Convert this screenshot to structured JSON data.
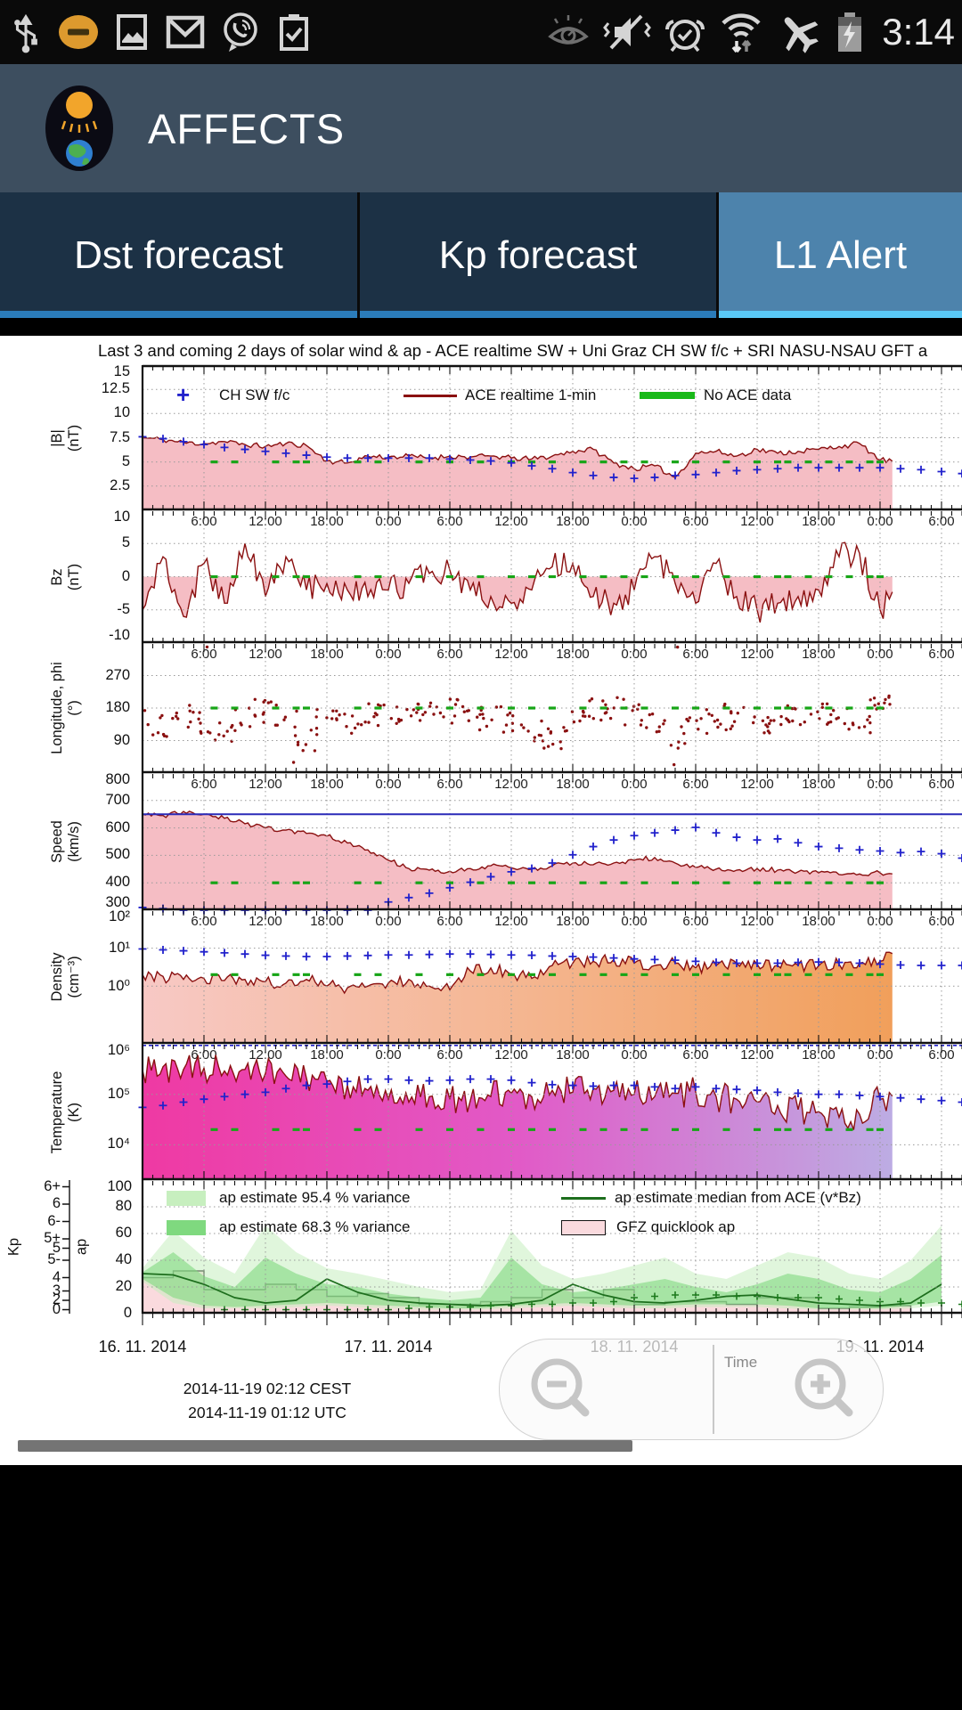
{
  "status_bar": {
    "time": "3:14",
    "icons_left": [
      "usb-icon",
      "do-not-disturb-icon",
      "gallery-icon",
      "gmail-icon",
      "viber-icon",
      "clipboard-icon"
    ],
    "icons_right": [
      "eye-icon",
      "mute-vibrate-icon",
      "alarm-icon",
      "wifi-icon",
      "airplane-mode-icon",
      "battery-charging-icon"
    ]
  },
  "header": {
    "app_title": "AFFECTS"
  },
  "tabs": [
    {
      "label": "Dst forecast",
      "active": false
    },
    {
      "label": "Kp forecast",
      "active": false
    },
    {
      "label": "L1 Alert",
      "active": true
    }
  ],
  "chart_data": {
    "type": "multi-panel-timeseries",
    "title": "Last 3 and coming 2 days of solar wind & ap  -  ACE realtime SW + Uni Graz CH SW f/c + SRI NASU-NSAU GFT a",
    "x_axis": {
      "start_hours": 0,
      "end_hours": 80,
      "data_end_hours": 73.2,
      "tick_interval_hours": 6,
      "minor_tick_hours": 1,
      "time_label_cycle": [
        "6:00",
        "12:00",
        "18:00",
        "0:00"
      ],
      "dates": [
        {
          "label": "16. 11. 2014",
          "hour": 0
        },
        {
          "label": "17. 11. 2014",
          "hour": 24
        },
        {
          "label": "18. 11. 2014",
          "hour": 48
        },
        {
          "label": "19. 11. 2014",
          "hour": 72
        }
      ]
    },
    "legend_top": [
      {
        "label": "CH SW f/c",
        "marker": "plus",
        "color": "#2222cc"
      },
      {
        "label": "ACE realtime 1-min",
        "marker": "line",
        "color": "#8a1010"
      },
      {
        "label": "No ACE data",
        "marker": "thick-line",
        "color": "#17a517"
      }
    ],
    "legend_ap": [
      {
        "label": "ap estimate 95.4 % variance",
        "marker": "patch",
        "color": "#c7efbf"
      },
      {
        "label": "ap estimate 68.3 % variance",
        "marker": "patch",
        "color": "#7fd97f"
      },
      {
        "label": "ap estimate median from ACE (v*Bz)",
        "marker": "line",
        "color": "#1d6e1d"
      },
      {
        "label": "GFZ quicklook ap",
        "marker": "box",
        "color": "#fadade"
      }
    ],
    "no_ace_data_hours": [
      7,
      9,
      13,
      15,
      16,
      21,
      23,
      27,
      30,
      33,
      36,
      38,
      40,
      43,
      45,
      47,
      49,
      52,
      54,
      57,
      60,
      62,
      63,
      65,
      67,
      69,
      71,
      72
    ],
    "panels": [
      {
        "id": "bmag",
        "label": "|B|",
        "unit": "(nT)",
        "scale": "linear",
        "ylim": [
          0,
          15
        ],
        "yticks": [
          {
            "v": 15,
            "label": "15"
          },
          {
            "v": 12.5,
            "label": "12.5"
          },
          {
            "v": 10,
            "label": "10"
          },
          {
            "v": 7.5,
            "label": "7.5"
          },
          {
            "v": 5,
            "label": "5"
          },
          {
            "v": 2.5,
            "label": "2.5"
          }
        ],
        "step_hours": 2,
        "no_ace_marker_value": 5,
        "ace": [
          7.5,
          7.3,
          7.0,
          6.9,
          7.1,
          6.8,
          6.6,
          6.9,
          6.7,
          5.1,
          4.9,
          5.6,
          5.5,
          5.6,
          5.4,
          5.6,
          5.5,
          5.6,
          5.4,
          5.3,
          5.6,
          6.1,
          6.3,
          4.9,
          4.3,
          4.6,
          3.4,
          5.9,
          6.1,
          5.6,
          6.3,
          5.9,
          6.1,
          6.3,
          6.6,
          6.9,
          5.2,
          5.0
        ],
        "forecast": [
          7.6,
          7.4,
          7.1,
          6.8,
          6.5,
          6.3,
          6.1,
          5.9,
          5.7,
          5.5,
          5.4,
          5.4,
          5.4,
          5.4,
          5.4,
          5.3,
          5.2,
          5.1,
          4.9,
          4.6,
          4.3,
          3.9,
          3.6,
          3.4,
          3.3,
          3.4,
          3.6,
          3.7,
          3.9,
          4.1,
          4.2,
          4.3,
          4.4,
          4.4,
          4.4,
          4.4,
          4.4,
          4.3,
          4.2,
          4.0,
          3.8
        ]
      },
      {
        "id": "bz",
        "label": "Bz",
        "unit": "(nT)",
        "scale": "linear",
        "ylim": [
          -10,
          10
        ],
        "yticks": [
          {
            "v": 10,
            "label": "10"
          },
          {
            "v": 5,
            "label": "5"
          },
          {
            "v": 0,
            "label": "0"
          },
          {
            "v": -5,
            "label": "-5"
          },
          {
            "v": -10,
            "label": "-10"
          }
        ],
        "step_hours": 2,
        "no_ace_marker_value": 0,
        "ace": [
          -5,
          3,
          -6,
          2,
          -4,
          5,
          -3,
          3,
          -2,
          -1,
          -2,
          -3,
          -2,
          -1,
          0.5,
          1,
          -2,
          -3,
          -4,
          -2,
          1.5,
          2,
          -3,
          -4,
          -2,
          3,
          -1,
          -4,
          2,
          -3,
          -5,
          -4,
          -3,
          -2,
          3,
          3.5,
          -5,
          -0.5
        ]
      },
      {
        "id": "phi",
        "label": "Longitude, phi",
        "unit": "(°)",
        "scale": "linear",
        "ylim": [
          0,
          360
        ],
        "yticks": [
          {
            "v": 270,
            "label": "270"
          },
          {
            "v": 180,
            "label": "180"
          },
          {
            "v": 90,
            "label": "90"
          }
        ],
        "step_hours": 2,
        "no_ace_marker_value": 180,
        "ace": [
          150,
          130,
          160,
          140,
          120,
          150,
          170,
          160,
          90,
          150,
          140,
          160,
          170,
          175,
          165,
          172,
          160,
          150,
          135,
          118,
          95,
          150,
          172,
          180,
          160,
          130,
          100,
          142,
          162,
          150,
          130,
          142,
          152,
          162,
          145,
          133,
          185,
          235
        ]
      },
      {
        "id": "speed",
        "label": "Speed",
        "unit": "(km/s)",
        "scale": "linear",
        "ylim": [
          300,
          800
        ],
        "yticks": [
          {
            "v": 800,
            "label": "800"
          },
          {
            "v": 700,
            "label": "700"
          },
          {
            "v": 600,
            "label": "600"
          },
          {
            "v": 500,
            "label": "500"
          },
          {
            "v": 400,
            "label": "400"
          },
          {
            "v": 300,
            "label": "300"
          }
        ],
        "step_hours": 2,
        "no_ace_marker_value": 400,
        "refline": 650,
        "ace": [
          650,
          645,
          660,
          650,
          635,
          615,
          600,
          592,
          580,
          570,
          545,
          520,
          482,
          452,
          446,
          442,
          452,
          462,
          455,
          450,
          462,
          472,
          466,
          472,
          482,
          492,
          472,
          456,
          450,
          446,
          452,
          446,
          440,
          436,
          430,
          432,
          436,
          430
        ],
        "forecast": [
          310,
          306,
          300,
          296,
          290,
          286,
          282,
          278,
          276,
          272,
          270,
          268,
          330,
          346,
          362,
          382,
          402,
          422,
          440,
          452,
          472,
          502,
          532,
          556,
          572,
          582,
          592,
          602,
          582,
          566,
          556,
          560,
          546,
          532,
          526,
          520,
          516,
          510,
          514,
          506,
          490
        ]
      },
      {
        "id": "density",
        "label": "Density",
        "unit": "(cm⁻³)",
        "scale": "log",
        "ylim": [
          0.03,
          100
        ],
        "yticks": [
          {
            "v": 100,
            "label": "10²"
          },
          {
            "v": 10,
            "label": "10¹"
          },
          {
            "v": 1,
            "label": "10⁰"
          }
        ],
        "step_hours": 2,
        "no_ace_marker_value": 2,
        "ace": [
          2,
          1.8,
          1.5,
          1.6,
          1.4,
          1.5,
          1.3,
          1.2,
          1.5,
          1.0,
          0.9,
          1.0,
          1.2,
          1.5,
          1.0,
          0.8,
          2.5,
          3.0,
          2.0,
          1.6,
          3.5,
          4.0,
          4.5,
          5.0,
          4.0,
          3.5,
          4.0,
          3.0,
          3.5,
          4.0,
          3.8,
          3.5,
          3.6,
          3.4,
          3.8,
          4.0,
          4.5,
          9.0
        ],
        "forecast": [
          9.5,
          9.0,
          8.5,
          8.0,
          7.5,
          7.0,
          6.5,
          6.2,
          6.0,
          6.0,
          6.2,
          6.4,
          6.6,
          6.6,
          6.8,
          7.0,
          7.0,
          6.8,
          6.6,
          6.5,
          6.2,
          6.0,
          5.8,
          5.5,
          5.2,
          5.0,
          4.8,
          4.5,
          4.2,
          4.0,
          4.0,
          4.0,
          4.2,
          4.3,
          4.2,
          4.0,
          3.8,
          3.6,
          3.5,
          3.5,
          3.5
        ]
      },
      {
        "id": "temperature",
        "label": "Temperature",
        "unit": "(K)",
        "scale": "log",
        "ylim": [
          2000,
          1000000
        ],
        "yticks": [
          {
            "v": 1000000,
            "label": "10⁶"
          },
          {
            "v": 100000,
            "label": "10⁵"
          },
          {
            "v": 10000,
            "label": "10⁴"
          }
        ],
        "step_hours": 2,
        "no_ace_marker_value": 20000,
        "refline_dashed": 930000,
        "ace": [
          300000,
          350000,
          310000,
          330000,
          290000,
          310000,
          260000,
          230000,
          210000,
          180000,
          150000,
          120000,
          80000,
          70000,
          90000,
          80000,
          75000,
          90000,
          105000,
          90000,
          120000,
          110000,
          130000,
          120000,
          100000,
          90000,
          105000,
          110000,
          90000,
          80000,
          70000,
          60000,
          50000,
          45000,
          35000,
          40000,
          80000,
          100000
        ],
        "forecast": [
          55000,
          60000,
          70000,
          80000,
          90000,
          100000,
          110000,
          130000,
          150000,
          160000,
          180000,
          200000,
          200000,
          190000,
          185000,
          190000,
          200000,
          200000,
          190000,
          170000,
          155000,
          150000,
          145000,
          150000,
          150000,
          140000,
          130000,
          140000,
          130000,
          125000,
          120000,
          110000,
          105000,
          100000,
          100000,
          95000,
          90000,
          85000,
          80000,
          75000,
          70000
        ]
      },
      {
        "id": "kp_ap",
        "label_left": "Kp",
        "label_right": "ap",
        "scale": "linear",
        "ylim": [
          0,
          100
        ],
        "ap_ticks": [
          {
            "v": 100,
            "label": "100"
          },
          {
            "v": 80,
            "label": "80"
          },
          {
            "v": 60,
            "label": "60"
          },
          {
            "v": 40,
            "label": "40"
          },
          {
            "v": 20,
            "label": "20"
          },
          {
            "v": 0,
            "label": "0"
          }
        ],
        "kp_ticks": [
          "6+",
          "6",
          "6-",
          "5+",
          "5",
          "5-",
          "4",
          "3",
          "2",
          "0"
        ],
        "bars_step_hours": 3,
        "gfz_ap": [
          27,
          32,
          18,
          18,
          22,
          18,
          13,
          15,
          12,
          7,
          7,
          9,
          12,
          18,
          12,
          18,
          7,
          9,
          9,
          7,
          12,
          12,
          4,
          5,
          6
        ],
        "median_step_hours": 3,
        "median": [
          30,
          29,
          22,
          12,
          8,
          10,
          26,
          16,
          10,
          8,
          7,
          6,
          7,
          10,
          22,
          14,
          9,
          8,
          10,
          13,
          14,
          11,
          8,
          7,
          6,
          8,
          22
        ],
        "band95_hi": [
          34,
          62,
          42,
          30,
          66,
          46,
          34,
          30,
          25,
          20,
          16,
          18,
          62,
          36,
          26,
          30,
          36,
          42,
          30,
          26,
          36,
          46,
          42,
          30,
          26,
          40,
          66
        ],
        "band95_lo": [
          24,
          8,
          4,
          4,
          4,
          5,
          6,
          5,
          4,
          3,
          3,
          3,
          4,
          5,
          6,
          5,
          4,
          4,
          5,
          5,
          5,
          4,
          3,
          3,
          3,
          4,
          6
        ],
        "band68_hi": [
          31,
          46,
          28,
          20,
          42,
          30,
          22,
          20,
          15,
          12,
          10,
          12,
          42,
          22,
          16,
          18,
          22,
          26,
          20,
          16,
          22,
          30,
          26,
          18,
          16,
          26,
          44
        ],
        "band68_lo": [
          26,
          12,
          6,
          5,
          6,
          7,
          8,
          7,
          6,
          5,
          4,
          4,
          6,
          7,
          8,
          7,
          6,
          6,
          7,
          7,
          7,
          6,
          4,
          4,
          4,
          6,
          9
        ],
        "forecast_plus_start_hour": 8,
        "forecast_plus_step_hours": 2,
        "forecast_plus": [
          3,
          3,
          3,
          3,
          3,
          3,
          3,
          3,
          3,
          4,
          5,
          5,
          5,
          6,
          6,
          7,
          7,
          8,
          8,
          9,
          12,
          13,
          14,
          14,
          14,
          13,
          13,
          12,
          12,
          12,
          11,
          10,
          9,
          9,
          8,
          8,
          7
        ]
      }
    ],
    "footer": {
      "timestamp_local": "2014-11-19 02:12 CEST",
      "timestamp_utc": "2014-11-19 01:12 UTC"
    },
    "zoom_control": {
      "label": "Time"
    }
  }
}
